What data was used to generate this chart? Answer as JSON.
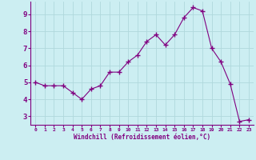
{
  "x": [
    0,
    1,
    2,
    3,
    4,
    5,
    6,
    7,
    8,
    9,
    10,
    11,
    12,
    13,
    14,
    15,
    16,
    17,
    18,
    19,
    20,
    21,
    22,
    23
  ],
  "y": [
    5.0,
    4.8,
    4.8,
    4.8,
    4.4,
    4.0,
    4.6,
    4.8,
    5.6,
    5.6,
    6.2,
    6.6,
    7.4,
    7.8,
    7.2,
    7.8,
    8.8,
    9.4,
    9.2,
    7.0,
    6.2,
    4.9,
    2.7,
    2.8
  ],
  "line_color": "#800080",
  "marker": "+",
  "marker_size": 4,
  "bg_color": "#cceef2",
  "grid_color": "#b0d8dc",
  "xlabel": "Windchill (Refroidissement éolien,°C)",
  "xlabel_color": "#800080",
  "tick_color": "#800080",
  "ylim": [
    2.5,
    9.75
  ],
  "xlim": [
    -0.5,
    23.5
  ],
  "yticks": [
    3,
    4,
    5,
    6,
    7,
    8,
    9
  ],
  "xtick_labels": [
    "0",
    "1",
    "2",
    "3",
    "4",
    "5",
    "6",
    "7",
    "8",
    "9",
    "10",
    "11",
    "12",
    "13",
    "14",
    "15",
    "16",
    "17",
    "18",
    "19",
    "20",
    "21",
    "22",
    "23"
  ]
}
